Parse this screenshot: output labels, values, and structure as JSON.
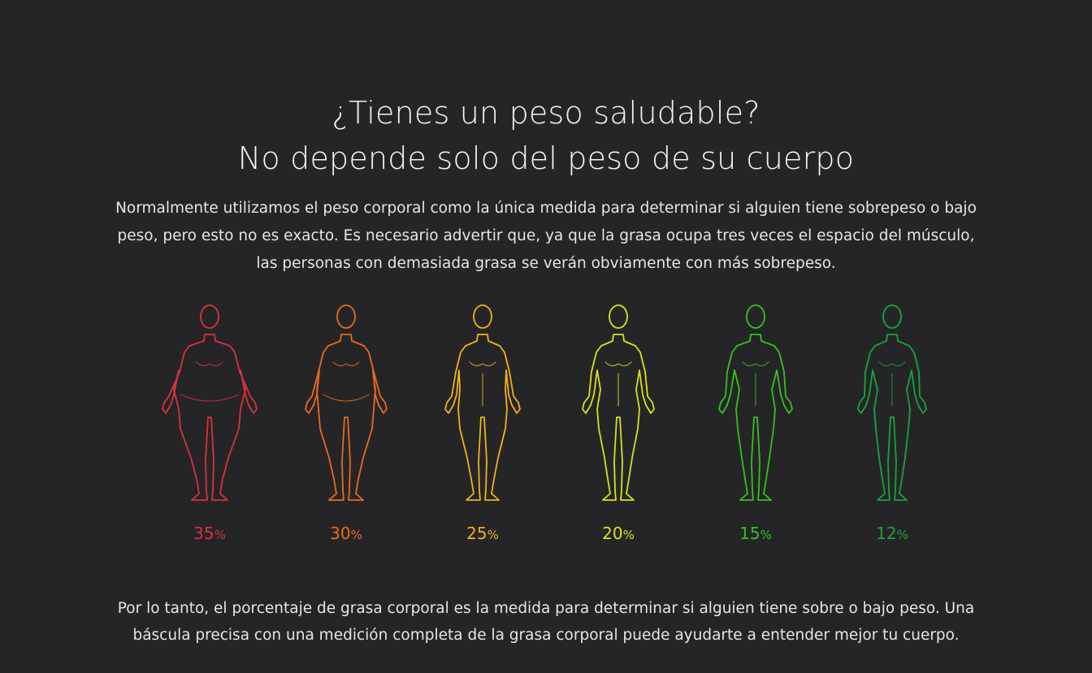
{
  "header": {
    "line1": "¿Tienes un peso saludable?",
    "line2": "No depende solo del peso de su cuerpo"
  },
  "intro": {
    "line1": "Normalmente utilizamos el peso corporal como la única medida para determinar si alguien tiene sobrepeso o bajo",
    "line2": "peso, pero esto no es exacto. Es necesario advertir que, ya que la grasa ocupa tres veces el espacio del músculo,",
    "line3": "las personas con demasiada grasa se verán obviamente con más sobrepeso."
  },
  "figures": [
    {
      "value": "35",
      "unit": "%",
      "color": "#d8323a",
      "icon": "obese-body-icon"
    },
    {
      "value": "30",
      "unit": "%",
      "color": "#e86b1c",
      "icon": "overweight-body-icon"
    },
    {
      "value": "25",
      "unit": "%",
      "color": "#f0b217",
      "icon": "average-body-icon"
    },
    {
      "value": "20",
      "unit": "%",
      "color": "#d9e21a",
      "icon": "fit-body-icon"
    },
    {
      "value": "15",
      "unit": "%",
      "color": "#35c21c",
      "icon": "athletic-body-icon"
    },
    {
      "value": "12",
      "unit": "%",
      "color": "#17a43a",
      "icon": "lean-body-icon"
    }
  ],
  "conclusion": {
    "line1": "Por lo tanto, el porcentaje de grasa corporal es la medida para determinar si alguien tiene sobre o bajo peso. Una",
    "line2": "báscula precisa con una medición completa de la grasa corporal puede ayudarte a entender mejor tu cuerpo."
  }
}
